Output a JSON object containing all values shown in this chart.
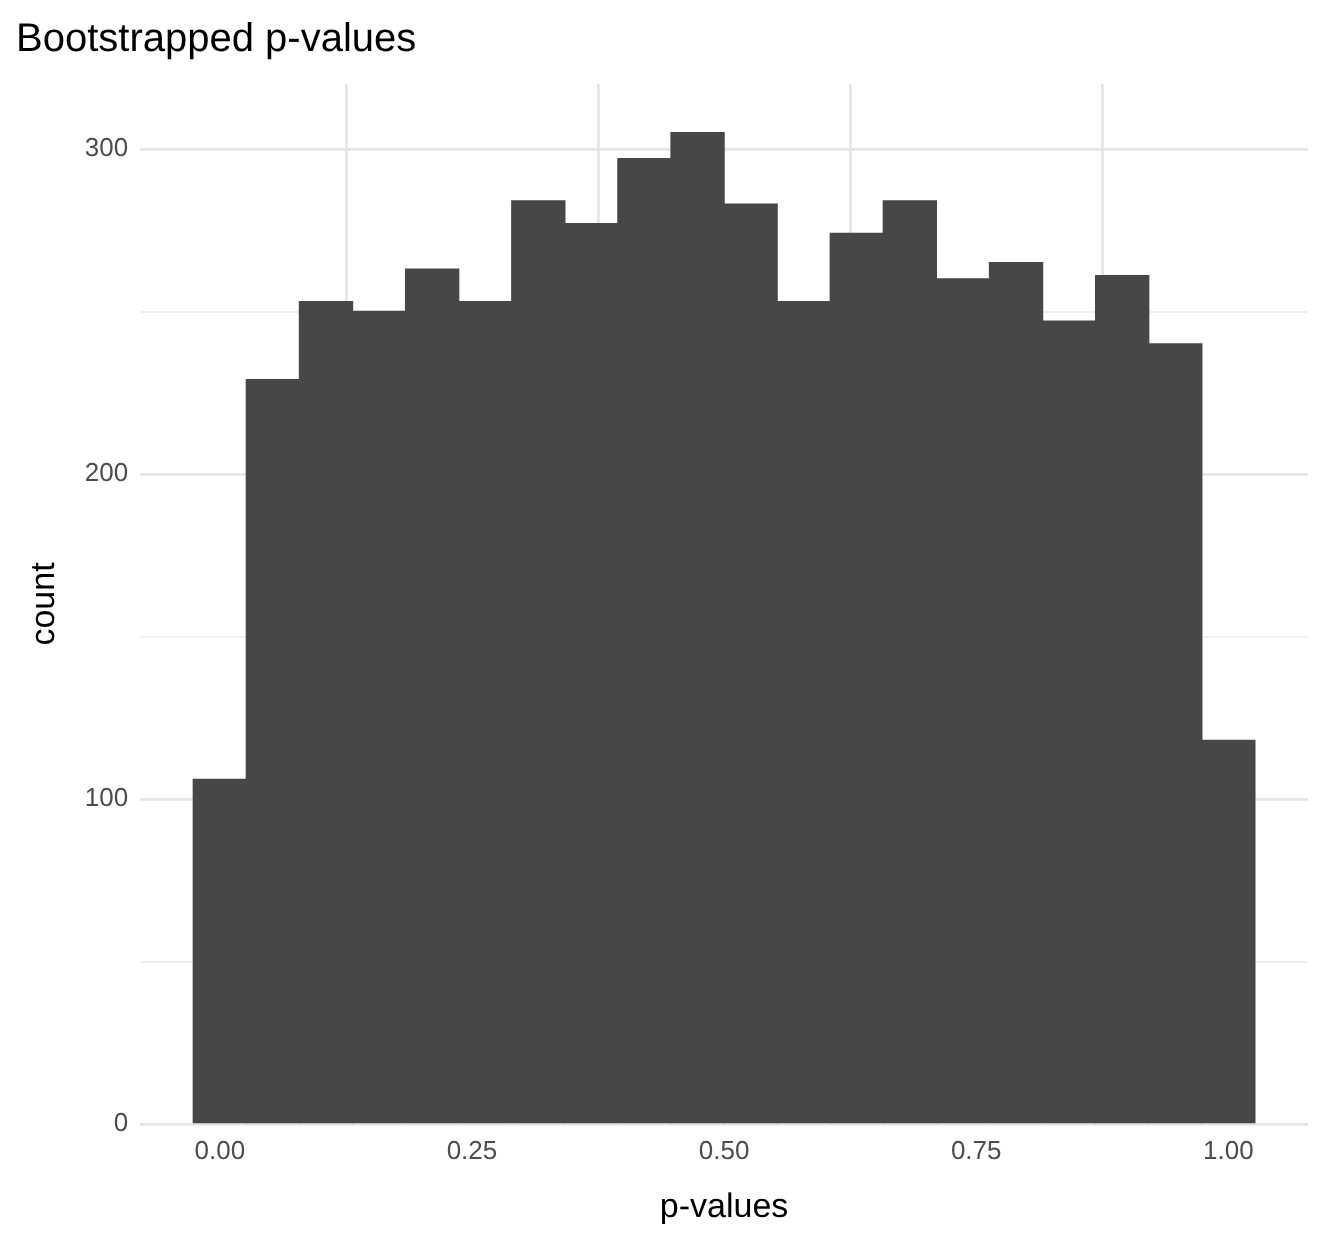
{
  "chart_data": {
    "type": "histogram",
    "title": "Bootstrapped p-values",
    "xlabel": "p-values",
    "ylabel": "count",
    "bins": [
      -0.0263,
      0.0263,
      0.0789,
      0.1316,
      0.1842,
      0.2368,
      0.2895,
      0.3421,
      0.3947,
      0.4474,
      0.5,
      0.5526,
      0.6053,
      0.6579,
      0.7105,
      0.7632,
      0.8158,
      0.8684,
      0.9211,
      0.9737,
      1.0263
    ],
    "values": [
      106,
      229,
      253,
      250,
      263,
      253,
      284,
      277,
      297,
      305,
      283,
      253,
      274,
      284,
      260,
      265,
      247,
      261,
      240,
      118
    ],
    "color": "#474747",
    "xlim": [
      -0.079,
      1.079
    ],
    "ylim": [
      0,
      320
    ],
    "xticks": [
      {
        "value": 0,
        "label": "0.00"
      },
      {
        "value": 0.25,
        "label": "0.25"
      },
      {
        "value": 0.5,
        "label": "0.50"
      },
      {
        "value": 0.75,
        "label": "0.75"
      },
      {
        "value": 1,
        "label": "1.00"
      }
    ],
    "yticks": [
      0,
      {
        "value": 50,
        "label": null
      },
      100,
      {
        "value": 150,
        "label": null
      },
      200,
      {
        "value": 250,
        "label": null
      },
      300
    ],
    "grid": true
  }
}
